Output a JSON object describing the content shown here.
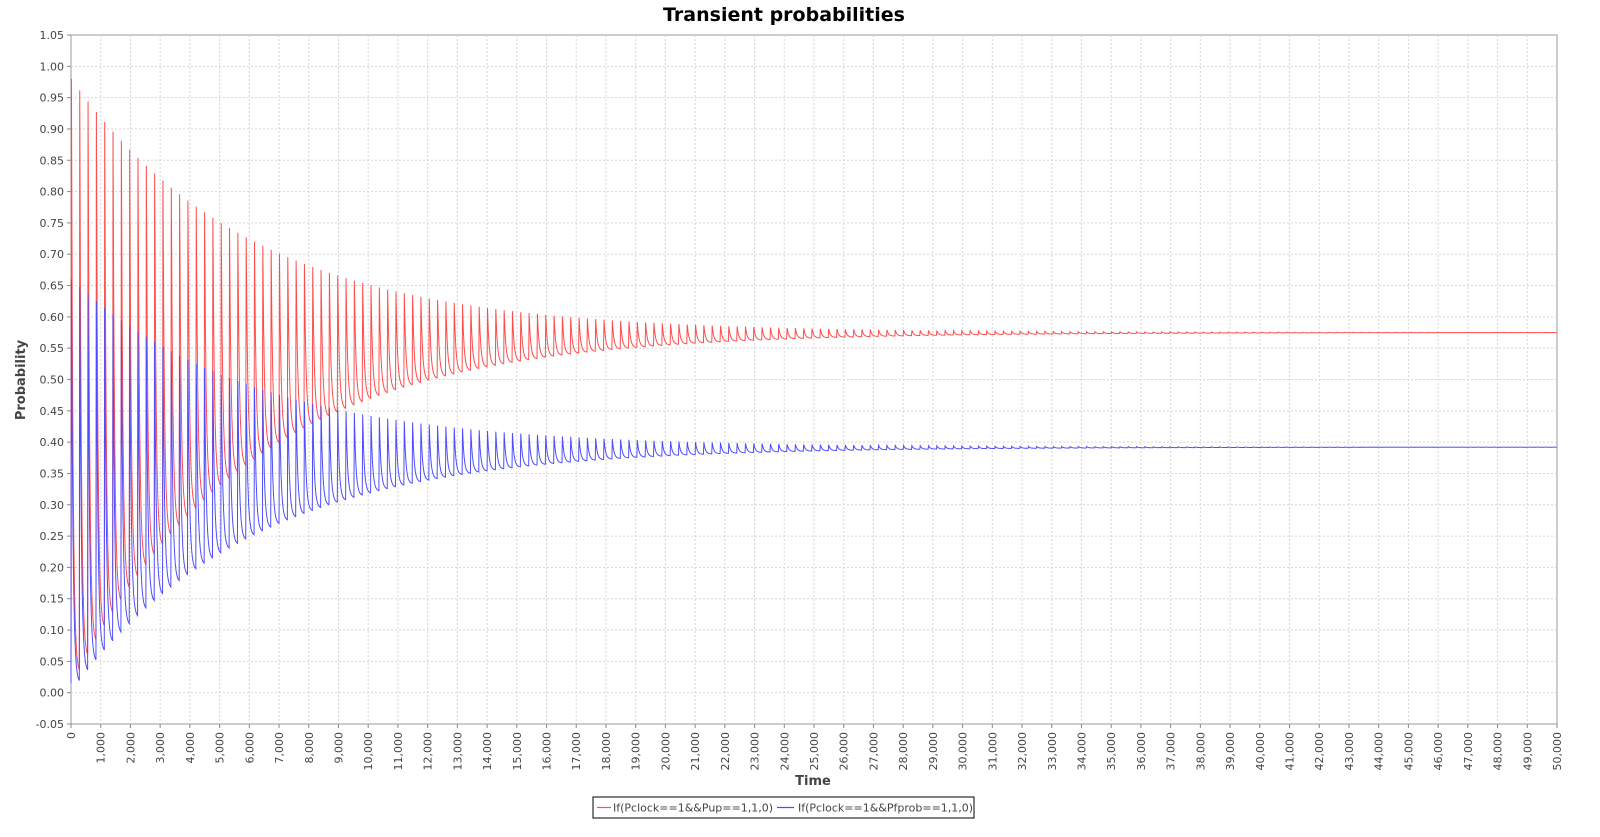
{
  "chart_data": {
    "type": "line",
    "title": "Transient probabilities",
    "xlabel": "Time",
    "ylabel": "Probability",
    "xlim": [
      0,
      50000
    ],
    "ylim": [
      -0.05,
      1.05
    ],
    "x_tick_step": 1000,
    "y_tick_step": 0.05,
    "grid": true,
    "legend_position": "bottom-center",
    "series": [
      {
        "name": "If(Pclock==1&&Pup==1,1,0)",
        "color": "#ff4d4d",
        "oscillation_period": 280,
        "steady_state": 0.575,
        "peak_envelope_initial": 0.98,
        "trough_envelope_initial": 0.03,
        "decay_time_constant": 6000,
        "settled_by": 35000
      },
      {
        "name": "If(Pclock==1&&Pfprob==1,1,0)",
        "color": "#4d4dff",
        "oscillation_period": 280,
        "steady_state": 0.392,
        "peak_envelope_initial": 0.66,
        "trough_envelope_initial": 0.015,
        "decay_time_constant": 6000,
        "settled_by": 35000
      }
    ]
  }
}
